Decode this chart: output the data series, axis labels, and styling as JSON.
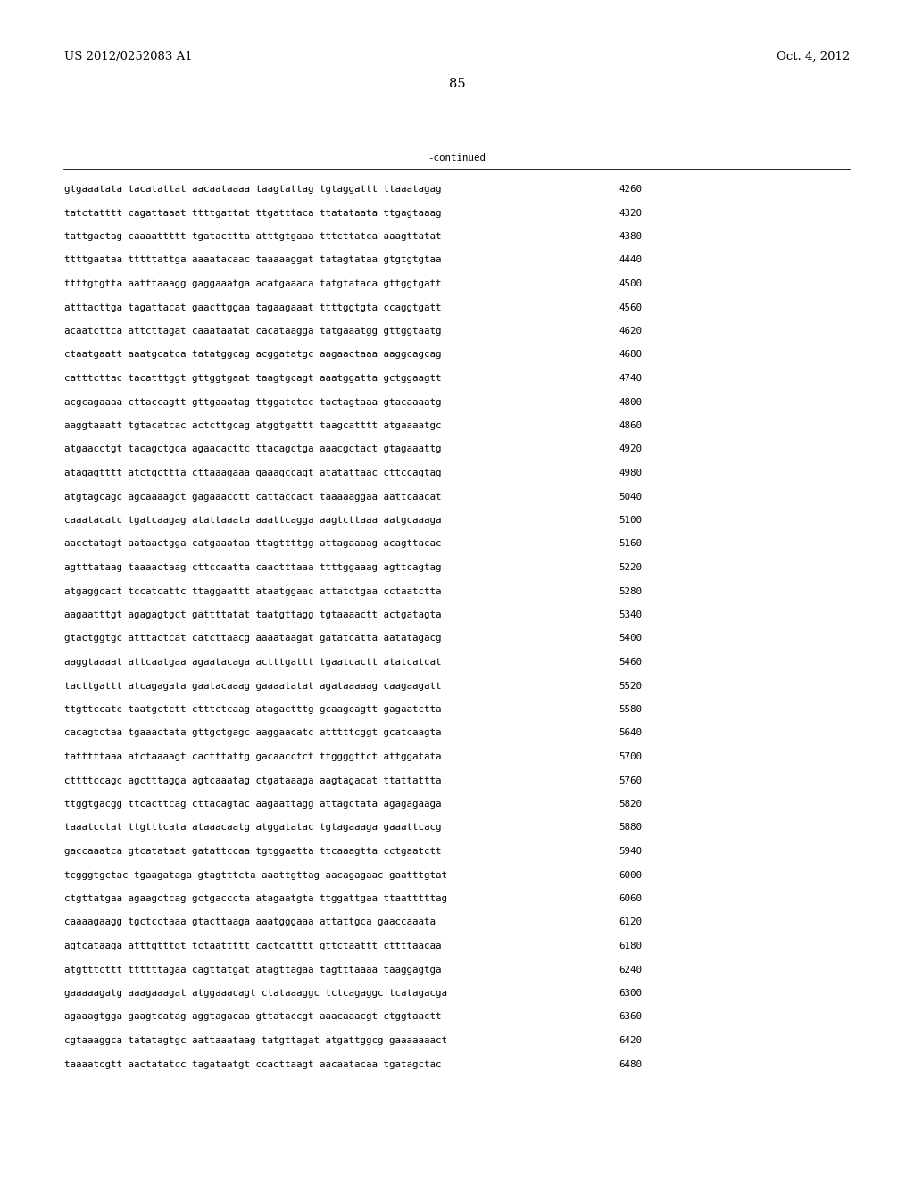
{
  "header_left": "US 2012/0252083 A1",
  "header_right": "Oct. 4, 2012",
  "page_number": "85",
  "continued_label": "-continued",
  "background_color": "#ffffff",
  "text_color": "#000000",
  "font_size_header": 9.5,
  "font_size_body": 7.8,
  "font_size_page": 10.5,
  "sequence_lines": [
    [
      "gtgaaatata tacatattat aacaataaaa taagtattag tgtaggattt ttaaatagag",
      "4260"
    ],
    [
      "tatctatttt cagattaaat ttttgattat ttgatttaca ttatataata ttgagtaaag",
      "4320"
    ],
    [
      "tattgactag caaaattttt tgatacttta atttgtgaaa tttcttatca aaagttatat",
      "4380"
    ],
    [
      "ttttgaataa tttttattga aaaatacaac taaaaaggat tatagtataa gtgtgtgtaa",
      "4440"
    ],
    [
      "ttttgtgtta aatttaaagg gaggaaatga acatgaaaca tatgtataca gttggtgatt",
      "4500"
    ],
    [
      "atttacttga tagattacat gaacttggaa tagaagaaat ttttggtgta ccaggtgatt",
      "4560"
    ],
    [
      "acaatcttca attcttagat caaataatat cacataagga tatgaaatgg gttggtaatg",
      "4620"
    ],
    [
      "ctaatgaatt aaatgcatca tatatggcag acggatatgc aagaactaaa aaggcagcag",
      "4680"
    ],
    [
      "catttcttac tacatttggt gttggtgaat taagtgcagt aaatggatta gctggaagtt",
      "4740"
    ],
    [
      "acgcagaaaa cttaccagtt gttgaaatag ttggatctcc tactagtaaa gtacaaaatg",
      "4800"
    ],
    [
      "aaggtaaatt tgtacatcac actcttgcag atggtgattt taagcatttt atgaaaatgc",
      "4860"
    ],
    [
      "atgaacctgt tacagctgca agaacacttc ttacagctga aaacgctact gtagaaattg",
      "4920"
    ],
    [
      "atagagtttt atctgcttta cttaaagaaa gaaagccagt atatattaac cttccagtag",
      "4980"
    ],
    [
      "atgtagcagc agcaaaagct gagaaacctt cattaccact taaaaaggaa aattcaacat",
      "5040"
    ],
    [
      "caaatacatc tgatcaagag atattaaata aaattcagga aagtcttaaa aatgcaaaga",
      "5100"
    ],
    [
      "aacctatagt aataactgga catgaaataa ttagttttgg attagaaaag acagttacac",
      "5160"
    ],
    [
      "agtttataag taaaactaag cttccaatta caactttaaa ttttggaaag agttcagtag",
      "5220"
    ],
    [
      "atgaggcact tccatcattc ttaggaattt ataatggaac attatctgaa cctaatctta",
      "5280"
    ],
    [
      "aagaatttgt agagagtgct gattttatat taatgttagg tgtaaaactt actgatagta",
      "5340"
    ],
    [
      "gtactggtgc atttactcat catcttaacg aaaataagat gatatcatta aatatagacg",
      "5400"
    ],
    [
      "aaggtaaaat attcaatgaa agaatacaga actttgattt tgaatcactt atatcatcat",
      "5460"
    ],
    [
      "tacttgattt atcagagata gaatacaaag gaaaatatat agataaaaag caagaagatt",
      "5520"
    ],
    [
      "ttgttccatc taatgctctt ctttctcaag atagactttg gcaagcagtt gagaatctta",
      "5580"
    ],
    [
      "cacagtctaa tgaaactata gttgctgagc aaggaacatc atttttcggt gcatcaagta",
      "5640"
    ],
    [
      "tatttttaaa atctaaaagt cactttattg gacaacctct ttggggttct attggatata",
      "5700"
    ],
    [
      "cttttccagc agctttagga agtcaaatag ctgataaaga aagtagacat ttattattta",
      "5760"
    ],
    [
      "ttggtgacgg ttcacttcag cttacagtac aagaattagg attagctata agagagaaga",
      "5820"
    ],
    [
      "taaatcctat ttgtttcata ataaacaatg atggatatac tgtagaaaga gaaattcacg",
      "5880"
    ],
    [
      "gaccaaatca gtcatataat gatattccaa tgtggaatta ttcaaagtta cctgaatctt",
      "5940"
    ],
    [
      "tcgggtgctac tgaagataga gtagtttcta aaattgttag aacagagaac gaatttgtat",
      "6000"
    ],
    [
      "ctgttatgaa agaagctcag gctgacccta atagaatgta ttggattgaa ttaatttttag",
      "6060"
    ],
    [
      "caaaagaagg tgctcctaaa gtacttaaga aaatgggaaa attattgca gaaccaaata",
      "6120"
    ],
    [
      "agtcataaga atttgtttgt tctaattttt cactcatttt gttctaattt cttttaacaa",
      "6180"
    ],
    [
      "atgtttcttt ttttttagaa cagttatgat atagttagaa tagtttaaaa taaggagtga",
      "6240"
    ],
    [
      "gaaaaagatg aaagaaagat atggaaacagt ctataaaggc tctcagaggc tcatagacga",
      "6300"
    ],
    [
      "agaaagtgga gaagtcatag aggtagacaa gttataccgt aaacaaacgt ctggtaactt",
      "6360"
    ],
    [
      "cgtaaaggca tatatagtgc aattaaataag tatgttagat atgattggcg gaaaaaaact",
      "6420"
    ],
    [
      "taaaatcgtt aactatatcc tagataatgt ccacttaagt aacaatacaa tgatagctac",
      "6480"
    ]
  ]
}
